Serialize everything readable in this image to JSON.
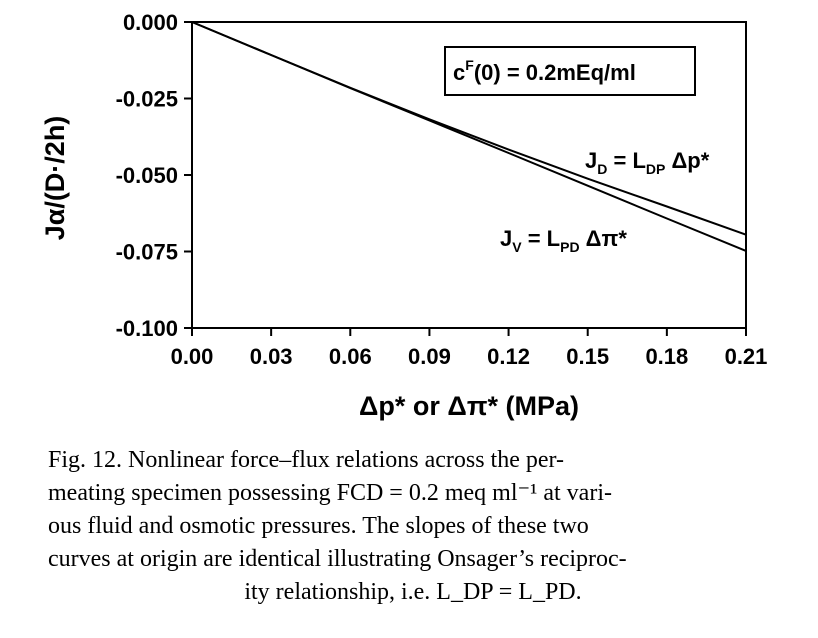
{
  "chart_data": {
    "type": "line",
    "xlabel": "Δp* or Δπ* (MPa)",
    "ylabel": "Jα/(D·/2h)",
    "xlim": [
      0.0,
      0.21
    ],
    "ylim": [
      -0.1,
      0.0
    ],
    "x_ticks": [
      "0.00",
      "0.03",
      "0.06",
      "0.09",
      "0.12",
      "0.15",
      "0.18",
      "0.21"
    ],
    "y_ticks": [
      "0.000",
      "-0.025",
      "-0.050",
      "-0.075",
      "-0.100"
    ],
    "grid": false,
    "series": [
      {
        "name": "J_D = L_DP Δp*",
        "x": [
          0.0,
          0.03,
          0.06,
          0.09,
          0.12,
          0.15,
          0.18,
          0.21
        ],
        "y": [
          0.0,
          -0.0108,
          -0.0215,
          -0.0318,
          -0.0417,
          -0.0512,
          -0.0603,
          -0.0695
        ]
      },
      {
        "name": "J_V = L_PD Δπ*",
        "x": [
          0.0,
          0.03,
          0.06,
          0.09,
          0.12,
          0.15,
          0.18,
          0.21
        ],
        "y": [
          0.0,
          -0.0108,
          -0.0216,
          -0.0322,
          -0.0428,
          -0.0535,
          -0.0642,
          -0.0748
        ]
      }
    ],
    "annotations": {
      "box_main": "c",
      "box_sup": "F",
      "box_rest": "(0)  = 0.2mEq/ml",
      "jd": {
        "J": "J",
        "sub1": "D",
        "mid": " = L",
        "sub2": "DP",
        "tail": " Δp*"
      },
      "jv": {
        "J": "J",
        "sub1": "V",
        "mid": " = L",
        "sub2": "PD",
        "tail": " Δπ*"
      }
    }
  },
  "caption": {
    "lines": [
      "Fig. 12. Nonlinear force–flux relations across the per-",
      "meating specimen possessing FCD = 0.2 meq ml⁻¹ at vari-",
      "ous fluid and osmotic pressures. The slopes of these two",
      "curves at origin are identical illustrating Onsager’s reciproc-",
      "ity relationship, i.e. L_DP = L_PD."
    ]
  }
}
